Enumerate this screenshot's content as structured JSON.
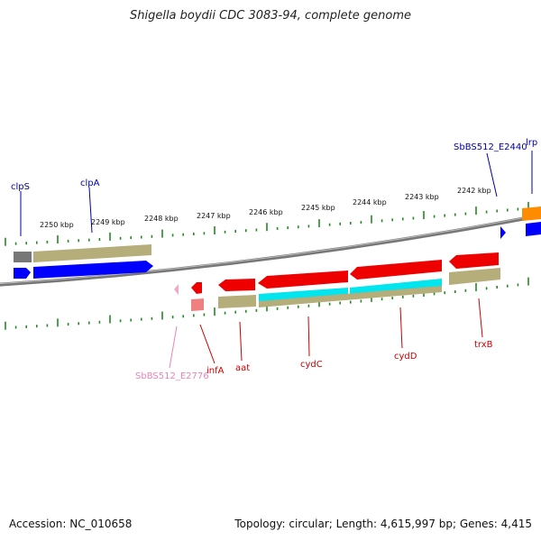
{
  "title": "Shigella boydii CDC 3083-94, complete genome",
  "footer": {
    "accession": "Accession: NC_010658",
    "summary": "Topology: circular; Length: 4,615,997 bp; Genes: 4,415"
  },
  "scale_labels": [
    "2250 kbp",
    "2249 kbp",
    "2248 kbp",
    "2247 kbp",
    "2246 kbp",
    "2245 kbp",
    "2244 kbp",
    "2243 kbp",
    "2242 kbp"
  ],
  "gene_labels": [
    {
      "name": "clpS",
      "color": "#0000aa"
    },
    {
      "name": "clpA",
      "color": "#0000aa"
    },
    {
      "name": "SbBS512_E2440",
      "color": "#0000aa"
    },
    {
      "name": "lrp",
      "color": "#0000aa"
    },
    {
      "name": "SbBS512_E2776",
      "color": "#ee82b4"
    },
    {
      "name": "infA",
      "color": "#cc0000"
    },
    {
      "name": "aat",
      "color": "#cc0000"
    },
    {
      "name": "cydC",
      "color": "#cc0000"
    },
    {
      "name": "cydD",
      "color": "#cc0000"
    },
    {
      "name": "trxB",
      "color": "#cc0000"
    }
  ],
  "colors": {
    "forward_cds": "#0000ff",
    "reverse_cds": "#ee0000",
    "gene_bar": "#b5ad7a",
    "backbone": "#777777",
    "tick": "#228b22",
    "cyan_feature": "#00e5ee",
    "orange_feature": "#ff8c00",
    "pink_feature": "#f4a6c8"
  }
}
